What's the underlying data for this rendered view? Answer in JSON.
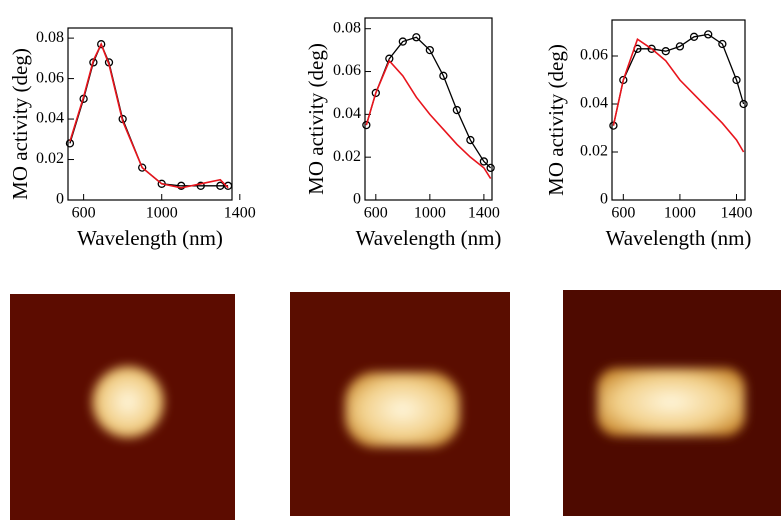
{
  "chart_data": [
    {
      "type": "line",
      "xlabel": "Wavelength (nm)",
      "ylabel": "MO activity (deg)",
      "x": [
        530,
        600,
        650,
        690,
        730,
        800,
        900,
        1000,
        1100,
        1200,
        1300,
        1340
      ],
      "xlim": [
        520,
        1360
      ],
      "xticks": [
        600,
        1000,
        1400
      ],
      "ylim": [
        0,
        0.085
      ],
      "yticks": [
        0,
        0.02,
        0.04,
        0.06,
        0.08
      ],
      "series": [
        {
          "color": "#000000",
          "marker": "circle",
          "values": [
            0.028,
            0.05,
            0.068,
            0.077,
            0.068,
            0.04,
            0.016,
            0.008,
            0.007,
            0.007,
            0.007,
            0.007
          ]
        },
        {
          "color": "#e8141c",
          "marker": "none",
          "values": [
            0.029,
            0.051,
            0.069,
            0.077,
            0.067,
            0.039,
            0.016,
            0.008,
            0.006,
            0.008,
            0.01,
            0.006
          ]
        }
      ]
    },
    {
      "type": "line",
      "xlabel": "Wavelength (nm)",
      "ylabel": "MO activity (deg)",
      "x": [
        530,
        600,
        700,
        800,
        900,
        1000,
        1100,
        1200,
        1300,
        1400,
        1450
      ],
      "xlim": [
        520,
        1460
      ],
      "xticks": [
        600,
        1000,
        1400
      ],
      "ylim": [
        0,
        0.085
      ],
      "yticks": [
        0,
        0.02,
        0.04,
        0.06,
        0.08
      ],
      "series": [
        {
          "color": "#000000",
          "marker": "circle",
          "values": [
            0.035,
            0.05,
            0.066,
            0.074,
            0.076,
            0.07,
            0.058,
            0.042,
            0.028,
            0.018,
            0.015
          ]
        },
        {
          "color": "#e8141c",
          "marker": "none",
          "values": [
            0.035,
            0.05,
            0.065,
            0.058,
            0.048,
            0.04,
            0.033,
            0.026,
            0.02,
            0.015,
            0.01
          ]
        }
      ]
    },
    {
      "type": "line",
      "xlabel": "Wavelength (nm)",
      "ylabel": "MO activity (deg)",
      "x": [
        530,
        600,
        700,
        800,
        900,
        1000,
        1100,
        1200,
        1300,
        1400,
        1450
      ],
      "xlim": [
        520,
        1460
      ],
      "xticks": [
        600,
        1000,
        1400
      ],
      "ylim": [
        0,
        0.075
      ],
      "yticks": [
        0,
        0.02,
        0.04,
        0.06
      ],
      "series": [
        {
          "color": "#000000",
          "marker": "circle",
          "values": [
            0.031,
            0.05,
            0.063,
            0.063,
            0.062,
            0.064,
            0.068,
            0.069,
            0.065,
            0.05,
            0.04
          ]
        },
        {
          "color": "#e8141c",
          "marker": "none",
          "values": [
            0.031,
            0.05,
            0.067,
            0.063,
            0.058,
            0.05,
            0.044,
            0.038,
            0.032,
            0.025,
            0.02
          ]
        }
      ]
    }
  ]
}
